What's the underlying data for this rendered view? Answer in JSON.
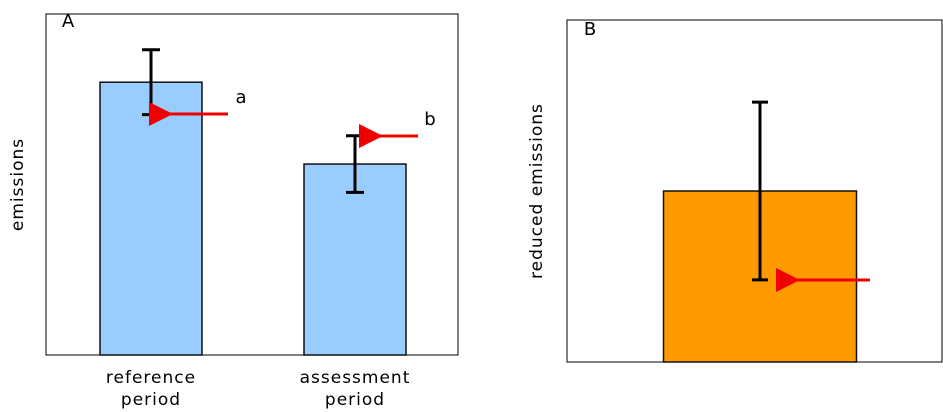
{
  "chart_data": [
    {
      "type": "bar",
      "panel_label": "A",
      "ylabel": "emissions",
      "categories": [
        "reference period",
        "assessment period"
      ],
      "values": [
        80,
        56
      ],
      "errors": [
        9.5,
        8.3
      ],
      "color": "#99ccff",
      "ylim": [
        0,
        100
      ],
      "annotations": [
        "a",
        "b"
      ]
    },
    {
      "type": "bar",
      "panel_label": "B",
      "ylabel": "reduced emissions",
      "categories": [
        null
      ],
      "values": [
        50
      ],
      "errors": [
        26
      ],
      "color": "#ff9900",
      "ylim": [
        0,
        100
      ],
      "annotations": []
    }
  ]
}
